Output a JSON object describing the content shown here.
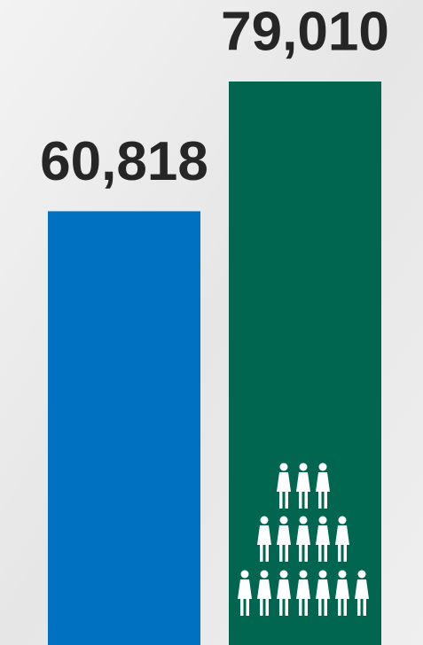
{
  "chart_data": {
    "type": "bar",
    "categories": [
      null,
      null
    ],
    "values": [
      60818,
      79010
    ],
    "value_labels": [
      "60,818",
      "79,010"
    ],
    "colors": [
      "#0070c0",
      "#00664f"
    ]
  }
}
